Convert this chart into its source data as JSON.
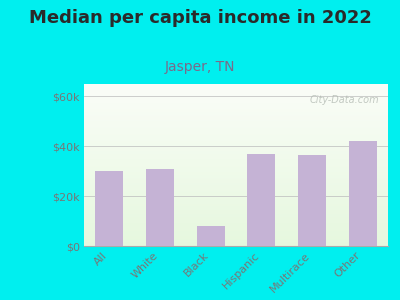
{
  "title": "Median per capita income in 2022",
  "subtitle": "Jasper, TN",
  "categories": [
    "All",
    "White",
    "Black",
    "Hispanic",
    "Multirace",
    "Other"
  ],
  "values": [
    30000,
    31000,
    8000,
    37000,
    36500,
    42000
  ],
  "bar_color": "#c5b3d5",
  "background_outer": "#00EFEF",
  "title_color": "#2a2a2a",
  "subtitle_color": "#7a6a8a",
  "tick_color": "#777777",
  "ylabel_ticks": [
    "$0",
    "$20k",
    "$40k",
    "$60k"
  ],
  "ylabel_values": [
    0,
    20000,
    40000,
    60000
  ],
  "ylim": [
    0,
    65000
  ],
  "watermark": "City-Data.com",
  "title_fontsize": 13,
  "subtitle_fontsize": 10,
  "tick_fontsize": 8
}
